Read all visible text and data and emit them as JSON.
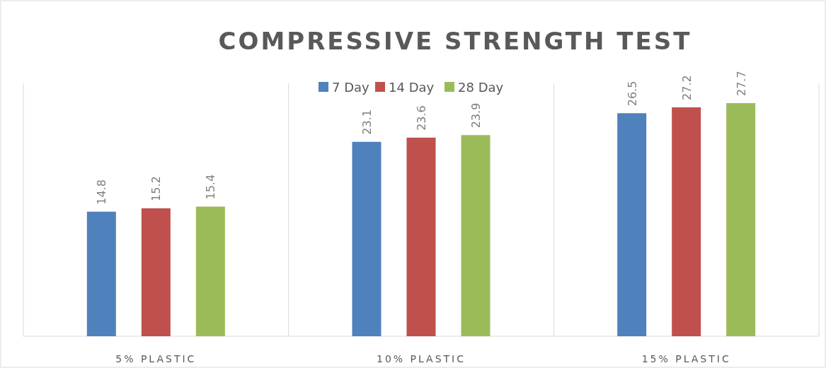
{
  "chart_data": {
    "type": "bar",
    "title": "COMPRESSIVE STRENGTH TEST",
    "categories": [
      "5% PLASTIC",
      "10% PLASTIC",
      "15% PLASTIC"
    ],
    "series": [
      {
        "name": "7 Day",
        "color": "#4f81bd",
        "values": [
          14.8,
          23.1,
          26.5
        ]
      },
      {
        "name": "14 Day",
        "color": "#c0504d",
        "values": [
          15.2,
          23.6,
          27.2
        ]
      },
      {
        "name": "28 Day",
        "color": "#9bbb59",
        "values": [
          15.4,
          23.9,
          27.7
        ]
      }
    ],
    "data_labels": true,
    "legend": "top"
  }
}
